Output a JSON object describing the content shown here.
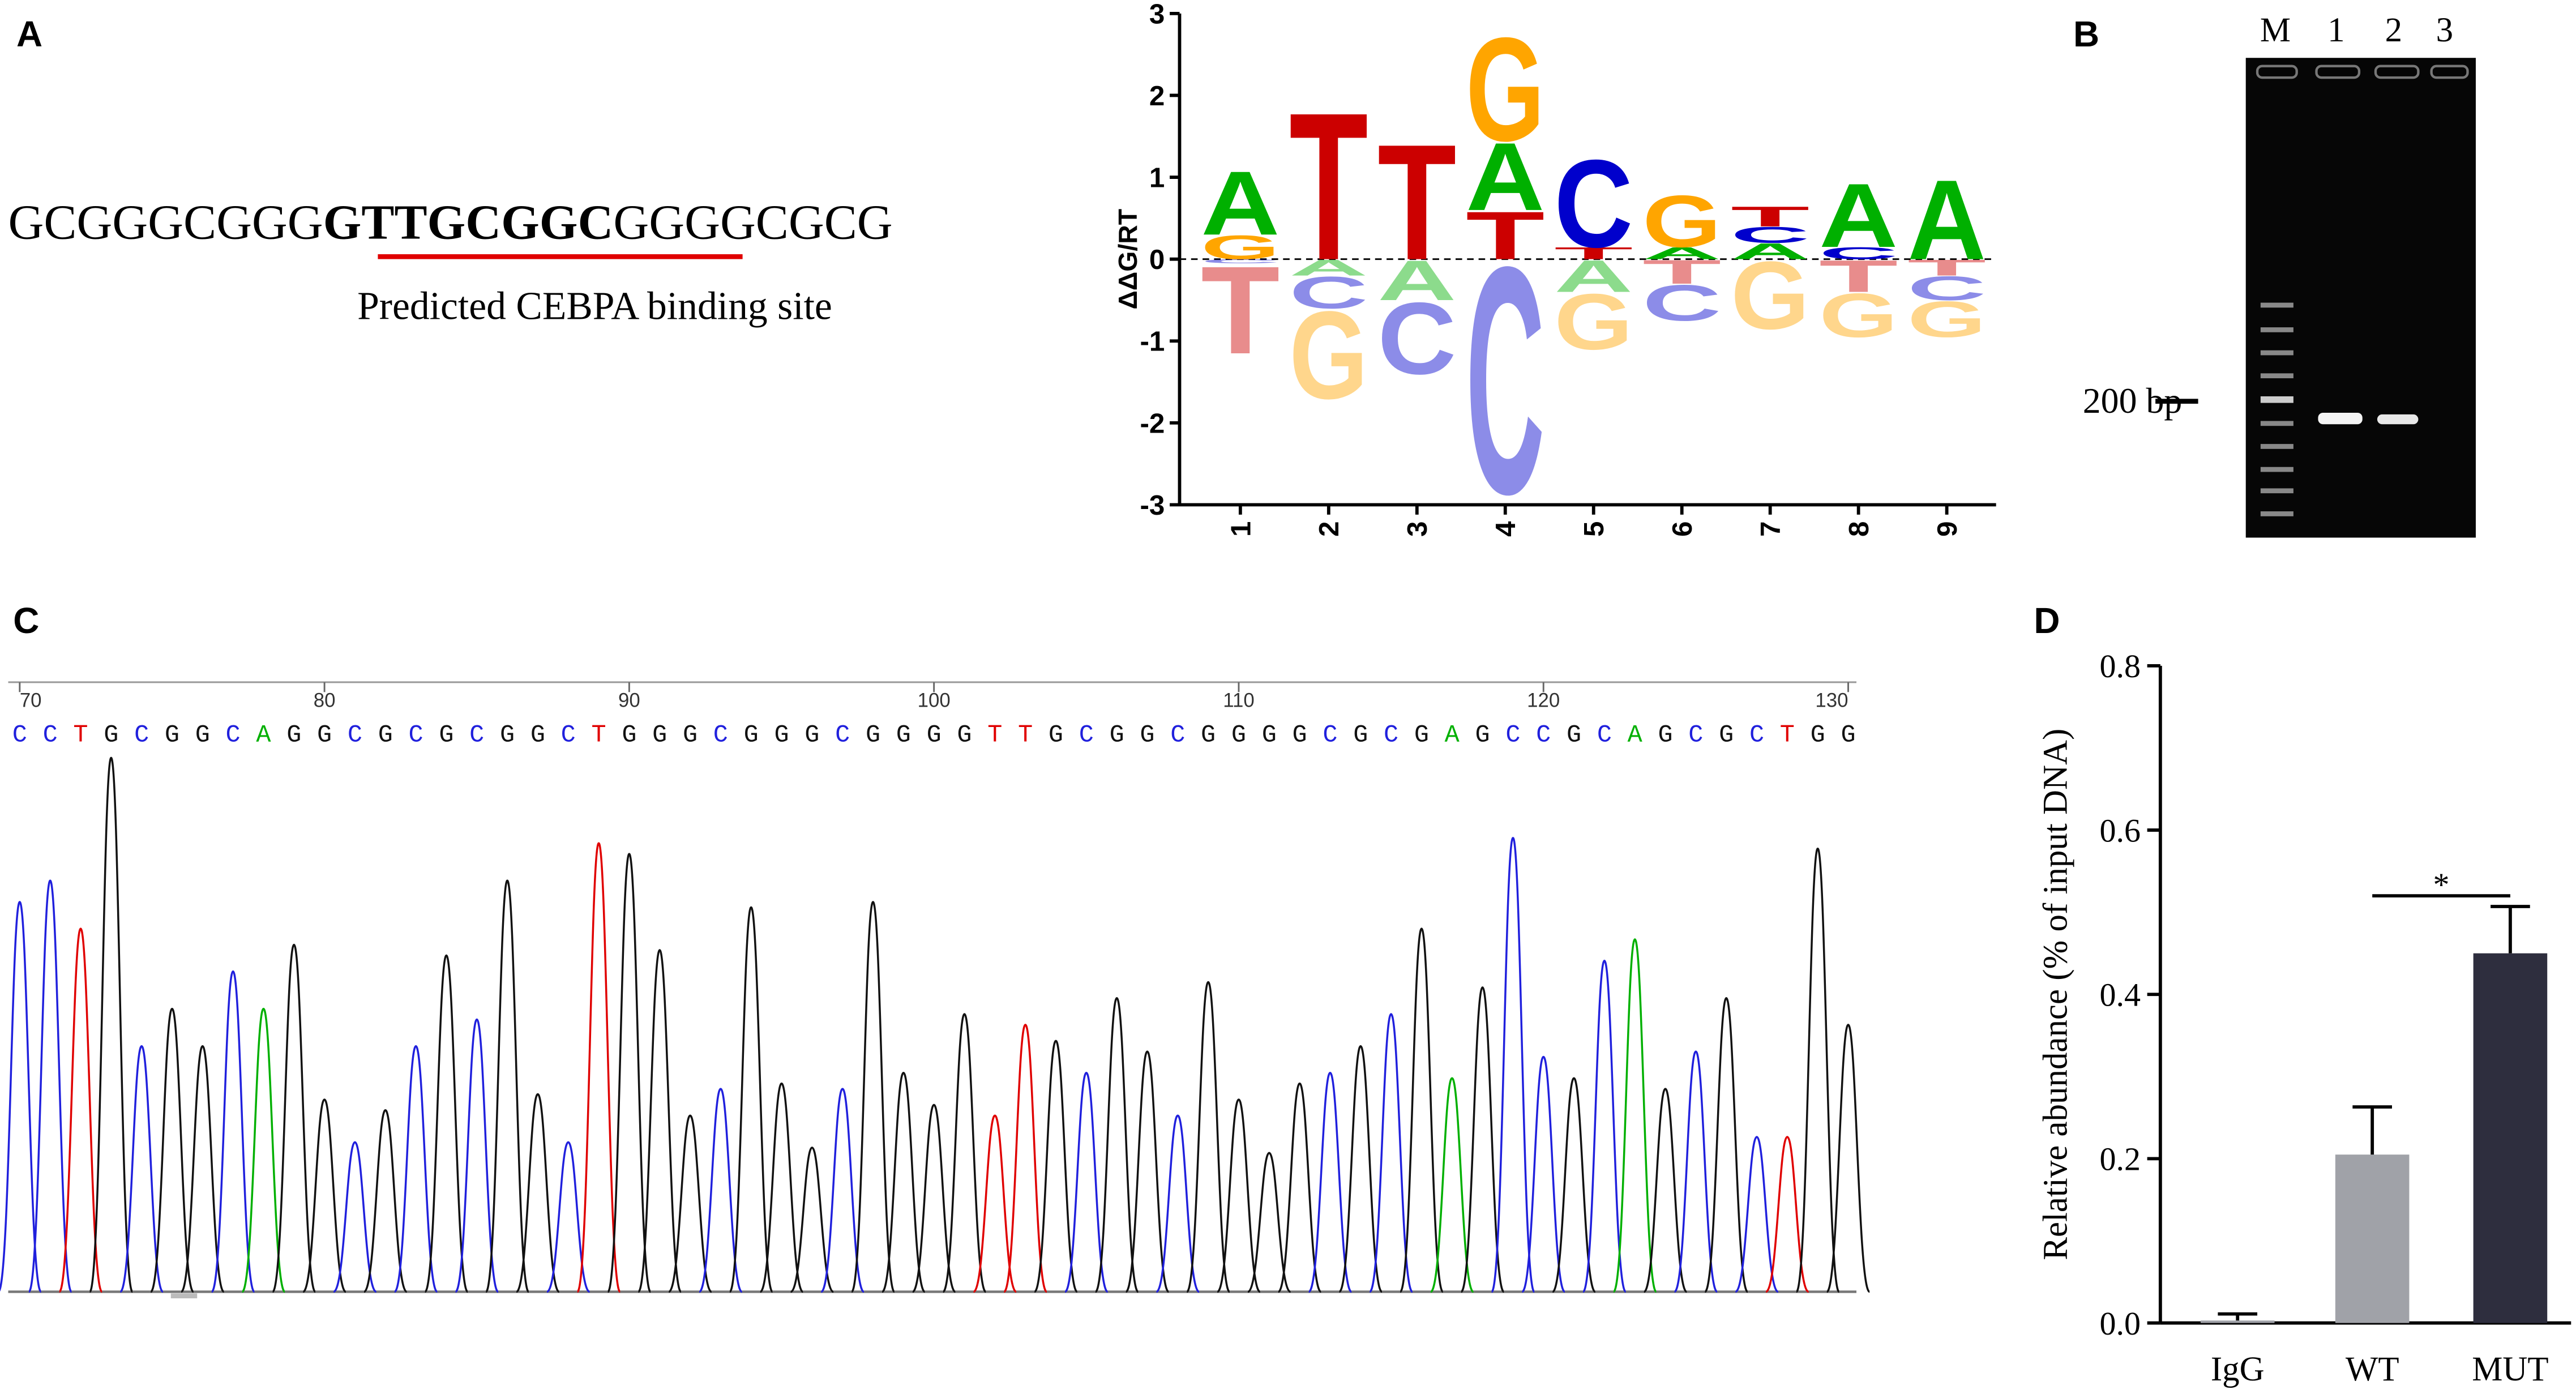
{
  "panel_labels": [
    "A",
    "B",
    "C",
    "D"
  ],
  "sequence_panel": {
    "before": "GCGGGCGGG",
    "site": "GTTGCGGC",
    "after": "GGGGCGCG",
    "caption": "Predicted CEBPA binding site"
  },
  "gel": {
    "lanes": [
      "M",
      "1",
      "2",
      "3"
    ],
    "marker_label": "200 bp"
  },
  "chart_data": [
    {
      "type": "logo",
      "y_label": "ΔΔG/RT",
      "ylim": [
        -3,
        3
      ],
      "yticks": [
        -3,
        -2,
        -1,
        0,
        1,
        2,
        3
      ],
      "x": [
        1,
        2,
        3,
        4,
        5,
        6,
        7,
        8,
        9
      ],
      "colors": {
        "A": "#00b000",
        "C": "#0000cc",
        "G": "#ffa500",
        "T": "#cc0000"
      },
      "stacks": [
        {
          "letters": [
            "G",
            "A",
            "C",
            "T"
          ],
          "values": [
            0.3,
            0.8,
            -0.05,
            -1.1
          ]
        },
        {
          "letters": [
            "T",
            "A",
            "C",
            "G"
          ],
          "values": [
            1.85,
            -0.2,
            -0.4,
            -1.1
          ]
        },
        {
          "letters": [
            "T",
            "A",
            "C"
          ],
          "values": [
            1.45,
            -0.5,
            -0.9
          ]
        },
        {
          "letters": [
            "T",
            "A",
            "G",
            "C"
          ],
          "values": [
            0.6,
            0.85,
            1.3,
            -2.85
          ]
        },
        {
          "letters": [
            "T",
            "C",
            "A",
            "G"
          ],
          "values": [
            0.15,
            1.1,
            -0.4,
            -0.7
          ]
        },
        {
          "letters": [
            "A",
            "G",
            "T",
            "C"
          ],
          "values": [
            0.15,
            0.65,
            -0.3,
            -0.45
          ]
        },
        {
          "letters": [
            "A",
            "C",
            "T",
            "G"
          ],
          "values": [
            0.2,
            0.2,
            0.25,
            -0.85
          ]
        },
        {
          "letters": [
            "C",
            "A",
            "T",
            "G"
          ],
          "values": [
            0.15,
            0.8,
            -0.4,
            -0.55
          ]
        },
        {
          "letters": [
            "A",
            "T",
            "C",
            "G"
          ],
          "values": [
            1.0,
            -0.2,
            -0.3,
            -0.45
          ]
        }
      ]
    },
    {
      "type": "chromatogram",
      "xlim": [
        70,
        130
      ],
      "xticks": [
        70,
        80,
        90,
        100,
        110,
        120,
        130
      ],
      "colors": {
        "A": "#00b000",
        "C": "#2020dd",
        "G": "#111111",
        "T": "#e00000"
      },
      "bases": [
        "C",
        "C",
        "T",
        "G",
        "C",
        "G",
        "G",
        "C",
        "A",
        "G",
        "G",
        "C",
        "G",
        "C",
        "G",
        "C",
        "G",
        "G",
        "C",
        "T",
        "G",
        "G",
        "G",
        "C",
        "G",
        "G",
        "G",
        "C",
        "G",
        "G",
        "G",
        "G",
        "T",
        "T",
        "G",
        "C",
        "G",
        "G",
        "C",
        "G",
        "G",
        "G",
        "G",
        "C",
        "G",
        "C",
        "G",
        "A",
        "G",
        "C",
        "C",
        "G",
        "C",
        "A",
        "G",
        "C",
        "G",
        "C",
        "T",
        "G",
        "G"
      ],
      "peaks": [
        0.73,
        0.77,
        0.68,
        1.0,
        0.46,
        0.53,
        0.46,
        0.6,
        0.53,
        0.65,
        0.36,
        0.28,
        0.34,
        0.46,
        0.63,
        0.51,
        0.77,
        0.37,
        0.28,
        0.84,
        0.82,
        0.64,
        0.33,
        0.38,
        0.72,
        0.39,
        0.27,
        0.38,
        0.73,
        0.41,
        0.35,
        0.52,
        0.33,
        0.5,
        0.47,
        0.41,
        0.55,
        0.45,
        0.33,
        0.58,
        0.36,
        0.26,
        0.39,
        0.41,
        0.46,
        0.52,
        0.68,
        0.4,
        0.57,
        0.85,
        0.44,
        0.4,
        0.62,
        0.66,
        0.38,
        0.45,
        0.55,
        0.29,
        0.29,
        0.83,
        0.5
      ]
    },
    {
      "type": "bar",
      "y_label": "Relative abundance (% of input DNA)",
      "categories": [
        "IgG",
        "WT",
        "MUT"
      ],
      "values": [
        0.003,
        0.205,
        0.45
      ],
      "errors": [
        0.008,
        0.058,
        0.057
      ],
      "colors": [
        "#a0a2a8",
        "#a0a2a8",
        "#2e2e3e"
      ],
      "ylim": [
        0,
        0.8
      ],
      "yticks": [
        {
          "value": 0,
          "label": "0.0"
        },
        0.2,
        0.4,
        0.6,
        0.8
      ],
      "annotation": "*"
    }
  ]
}
